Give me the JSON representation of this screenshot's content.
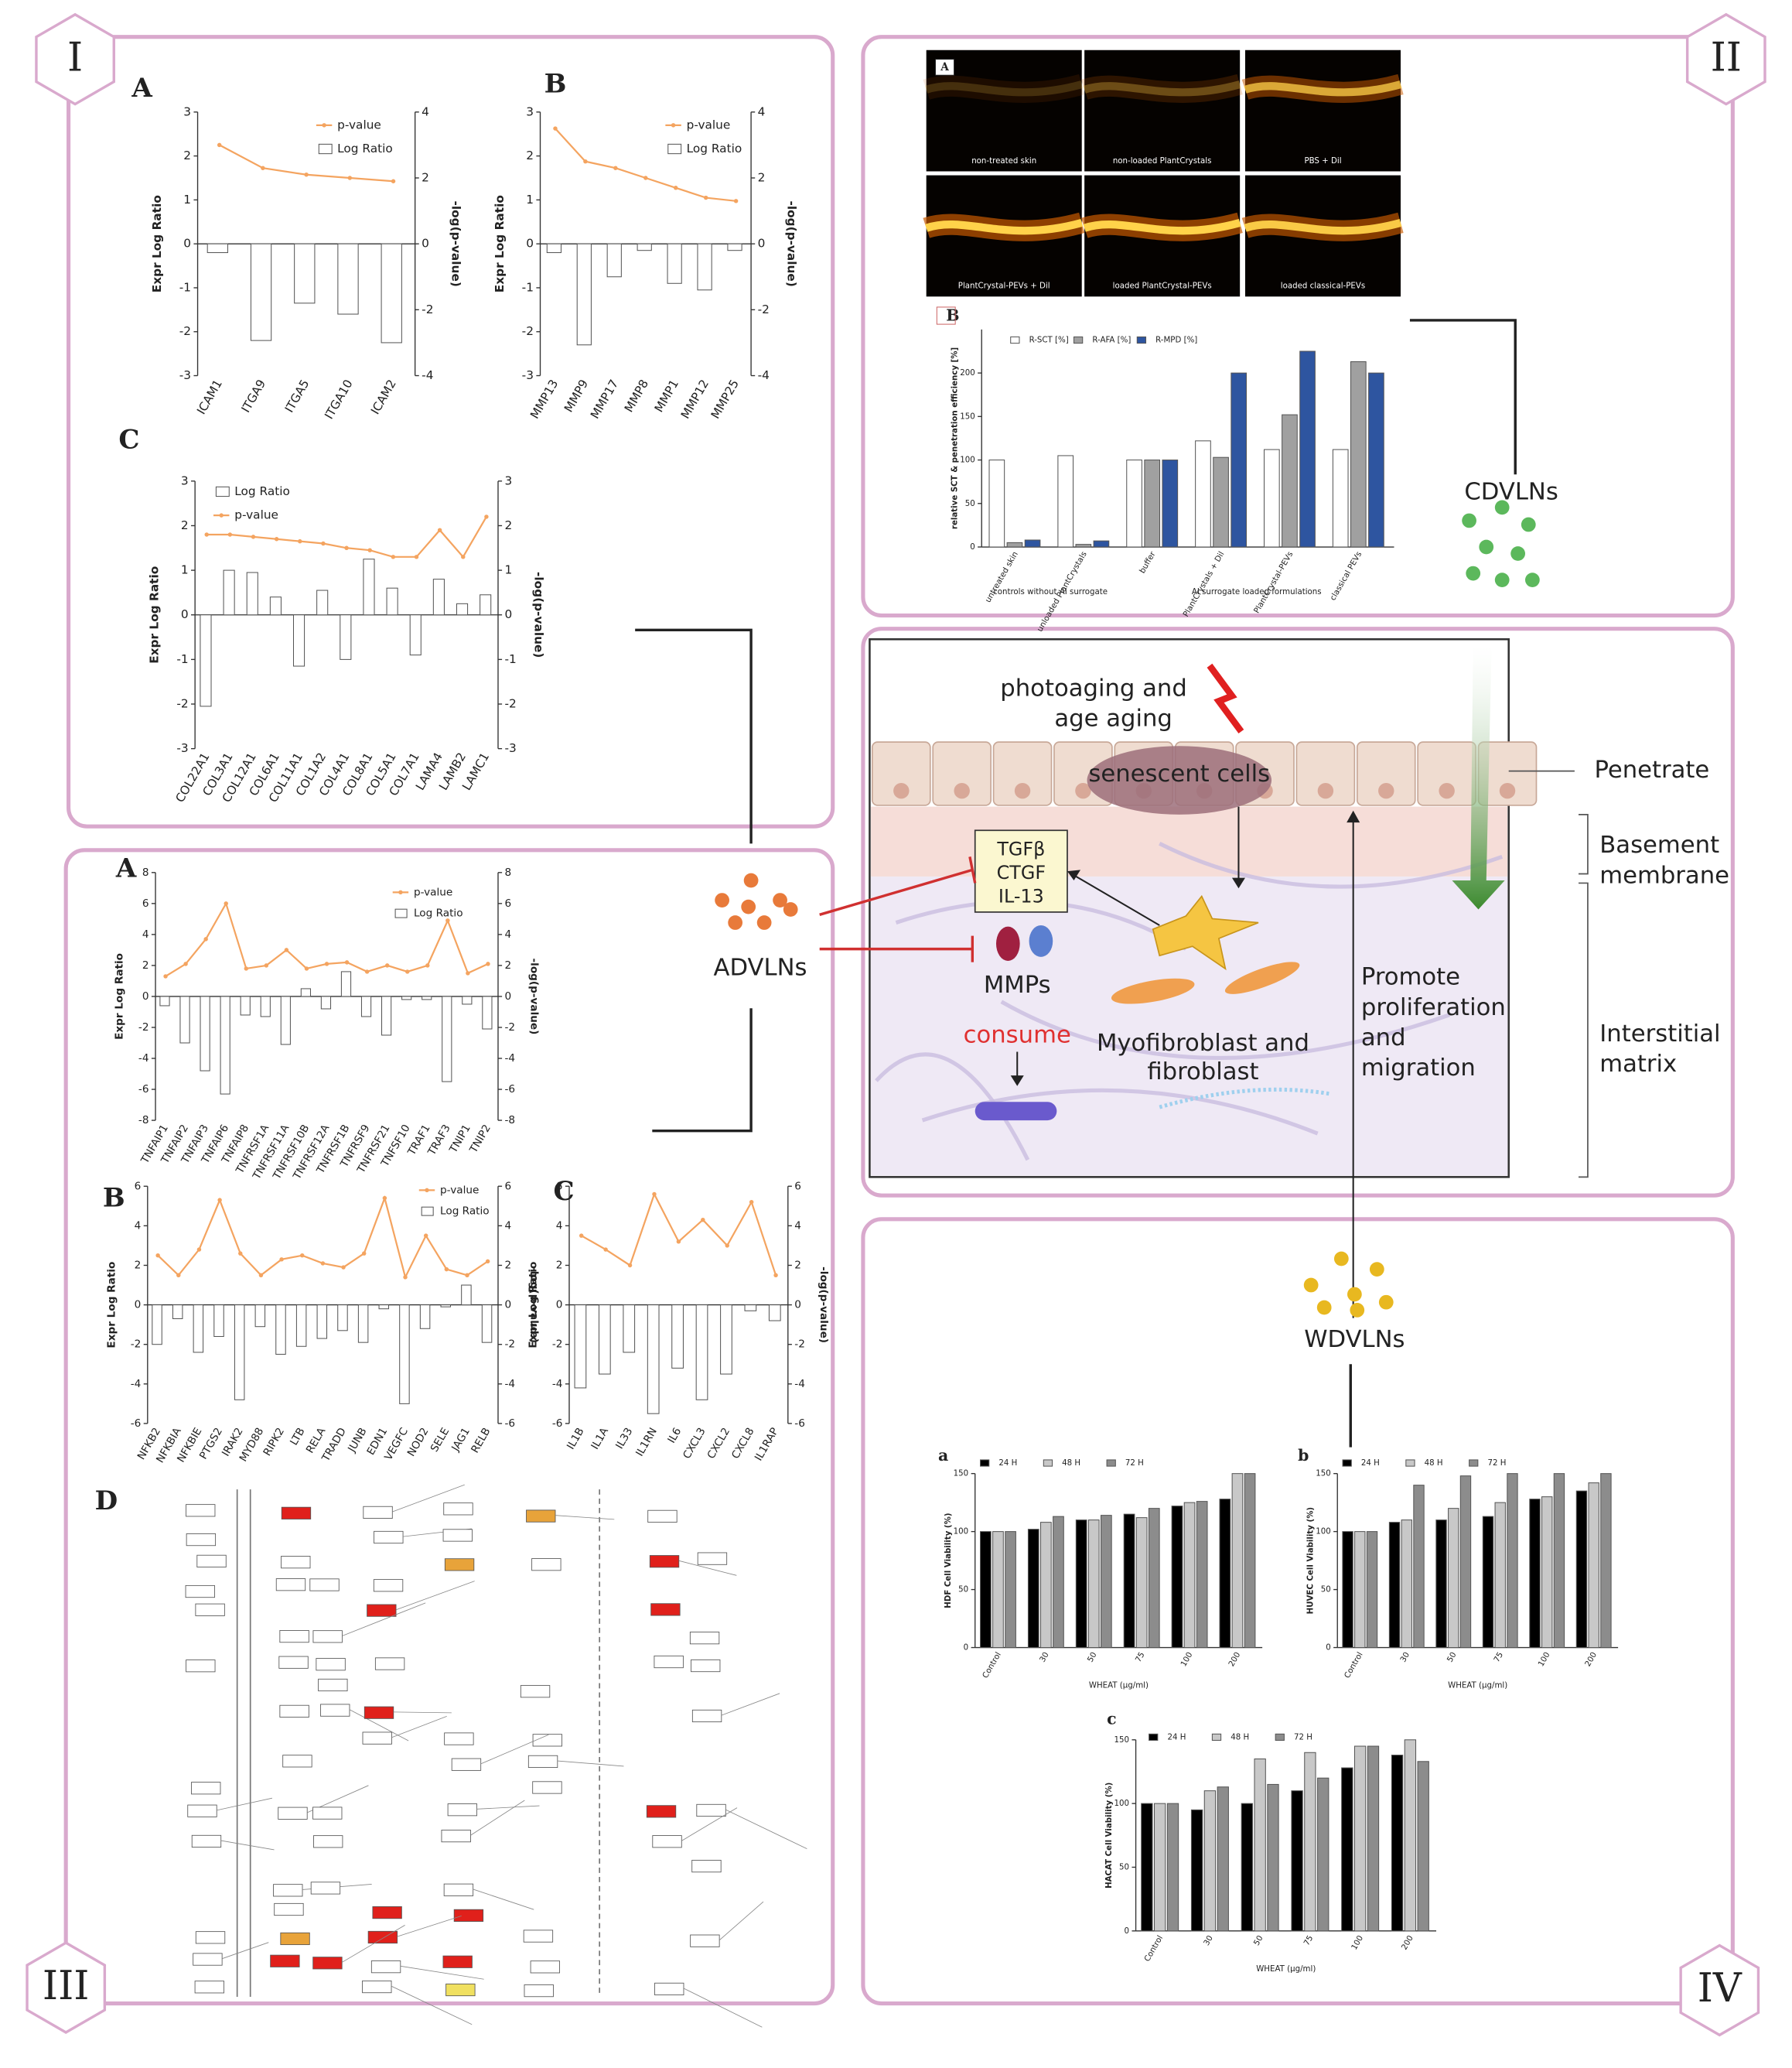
{
  "panel_labels": [
    "I",
    "II",
    "III",
    "IV"
  ],
  "microscopy": {
    "label": "A",
    "captions": [
      "non-treated skin",
      "non-loaded PlantCrystals",
      "PBS + Dil",
      "PlantCrystal-PEVs + Dil",
      "loaded PlantCrystal-PEVs",
      "loaded classical-PEVs"
    ]
  },
  "diagram": {
    "photoaging": [
      "photoaging and",
      "age aging"
    ],
    "senescent": "senescent cells",
    "penetrate": "Penetrate",
    "basement": [
      "Basement",
      "membrane"
    ],
    "interstitial": [
      "Interstitial",
      "matrix"
    ],
    "factors": [
      "TGFβ",
      "CTGF",
      "IL-13"
    ],
    "mmps": "MMPs",
    "consume": "consume",
    "fibroblast": [
      "Myofibroblast and",
      "fibroblast"
    ],
    "promote": [
      "Promote",
      "proliferation",
      "and",
      "migration"
    ],
    "cdvlns": "CDVLNs",
    "advlns": "ADVLNs",
    "wdvlns": "WDVLNs"
  },
  "pathway_label": "D",
  "chart_data": [
    {
      "type": "combo",
      "label": "A",
      "ylabel": "Expr Log Ratio",
      "y2label": "-log(p-value)",
      "categories": [
        "ICAM1",
        "ITGA9",
        "ITGA5",
        "ITGA10",
        "ICAM2"
      ],
      "ylim": [
        -3,
        3
      ],
      "yticks": [
        -3,
        -2,
        -1,
        0,
        1,
        2,
        3
      ],
      "y2lim": [
        -4,
        4
      ],
      "y2ticks": [
        -4,
        -2,
        0,
        2,
        4
      ],
      "series": [
        {
          "name": "p-value",
          "color": "#f4a460",
          "axis": "y2",
          "values": [
            3.0,
            2.3,
            2.1,
            2.0,
            1.9
          ]
        },
        {
          "name": "Log Ratio",
          "color": "#ffffff",
          "values": [
            -0.2,
            -2.2,
            -1.35,
            -1.6,
            -2.25
          ]
        }
      ]
    },
    {
      "type": "combo",
      "label": "B",
      "ylabel": "Expr Log Ratio",
      "y2label": "-log(p-value)",
      "categories": [
        "MMP13",
        "MMP9",
        "MMP17",
        "MMP8",
        "MMP1",
        "MMP12",
        "MMP25"
      ],
      "ylim": [
        -3,
        3
      ],
      "yticks": [
        -3,
        -2,
        -1,
        0,
        1,
        2,
        3
      ],
      "y2lim": [
        -4,
        4
      ],
      "y2ticks": [
        -4,
        -2,
        0,
        2,
        4
      ],
      "series": [
        {
          "name": "p-value",
          "color": "#f4a460",
          "axis": "y2",
          "values": [
            3.5,
            2.5,
            2.3,
            2.0,
            1.7,
            1.4,
            1.3
          ]
        },
        {
          "name": "Log Ratio",
          "color": "#ffffff",
          "values": [
            -0.2,
            -2.3,
            -0.75,
            -0.15,
            -0.9,
            -1.05,
            -0.15
          ]
        }
      ]
    },
    {
      "type": "combo",
      "label": "C",
      "ylabel": "Expr Log Ratio",
      "y2label": "-log(p-value)",
      "categories": [
        "COL22A1",
        "COL3A1",
        "COL12A1",
        "COL6A1",
        "COL11A1",
        "COL1A2",
        "COL4A1",
        "COL8A1",
        "COL5A1",
        "COL7A1",
        "LAMA4",
        "LAMB2",
        "LAMC1"
      ],
      "ylim": [
        -3,
        3
      ],
      "yticks": [
        -3,
        -2,
        -1,
        0,
        1,
        2,
        3
      ],
      "y2lim": [
        -3,
        3
      ],
      "y2ticks": [
        -3,
        -2,
        -1,
        0,
        1,
        2,
        3
      ],
      "series": [
        {
          "name": "Log Ratio",
          "color": "#ffffff",
          "values": [
            -2.05,
            1.0,
            0.95,
            0.4,
            -1.15,
            0.55,
            -1.0,
            1.25,
            0.6,
            -0.9,
            0.8,
            0.25,
            0.45
          ]
        },
        {
          "name": "p-value",
          "color": "#f4a460",
          "axis": "y2",
          "values": [
            1.8,
            1.8,
            1.75,
            1.7,
            1.65,
            1.6,
            1.5,
            1.45,
            1.3,
            1.3,
            1.9,
            1.3,
            2.2
          ]
        }
      ]
    },
    {
      "type": "combo",
      "label": "A",
      "ylabel": "Expr Log Ratio",
      "y2label": "-log(p-value)",
      "categories": [
        "TNFAIP1",
        "TNFAIP2",
        "TNFAIP3",
        "TNFAIP6",
        "TNFAIP8",
        "TNFRSF1A",
        "TNFRSF11A",
        "TNFRSF10B",
        "TNFRSF12A",
        "TNFRSF1B",
        "TNFRSF9",
        "TNFRSF21",
        "TNFSF10",
        "TRAF1",
        "TRAF3",
        "TNIP1",
        "TNIP2"
      ],
      "ylim": [
        -8,
        8
      ],
      "yticks": [
        -8,
        -6,
        -4,
        -2,
        0,
        2,
        4,
        6,
        8
      ],
      "y2lim": [
        -8,
        8
      ],
      "y2ticks": [
        -8,
        -6,
        -4,
        -2,
        0,
        2,
        4,
        6,
        8
      ],
      "series": [
        {
          "name": "p-value",
          "color": "#f4a460",
          "axis": "y2",
          "values": [
            1.3,
            2.1,
            3.7,
            6.0,
            1.8,
            2.0,
            3.0,
            1.8,
            2.1,
            2.2,
            1.6,
            2.0,
            1.6,
            2.0,
            4.9,
            1.5,
            2.1
          ]
        },
        {
          "name": "Log Ratio",
          "color": "#ffffff",
          "values": [
            -0.6,
            -3.0,
            -4.8,
            -6.3,
            -1.2,
            -1.3,
            -3.1,
            0.5,
            -0.8,
            1.6,
            -1.3,
            -2.5,
            -0.2,
            -0.2,
            -5.5,
            -0.5,
            -2.1
          ]
        }
      ]
    },
    {
      "type": "combo",
      "label": "B",
      "ylabel": "Expr Log Ratio",
      "y2label": "-log(p-value)",
      "categories": [
        "NFKB2",
        "NFKBIA",
        "NFKBIE",
        "PTGS2",
        "IRAK2",
        "MYD88",
        "RIPK2",
        "LTB",
        "RELA",
        "TRADD",
        "JUNB",
        "EDN1",
        "VEGFC",
        "NOD2",
        "SELE",
        "JAG1",
        "RELB"
      ],
      "ylim": [
        -6,
        6
      ],
      "yticks": [
        -6,
        -4,
        -2,
        0,
        2,
        4,
        6
      ],
      "y2lim": [
        -6,
        6
      ],
      "y2ticks": [
        -6,
        -4,
        -2,
        0,
        2,
        4,
        6
      ],
      "series": [
        {
          "name": "p-value",
          "color": "#f4a460",
          "axis": "y2",
          "values": [
            2.5,
            1.5,
            2.8,
            5.3,
            2.6,
            1.5,
            2.3,
            2.5,
            2.1,
            1.9,
            2.6,
            5.4,
            1.4,
            3.5,
            1.8,
            1.5,
            2.2
          ]
        },
        {
          "name": "Log Ratio",
          "color": "#ffffff",
          "values": [
            -2.0,
            -0.7,
            -2.4,
            -1.6,
            -4.8,
            -1.1,
            -2.5,
            -2.1,
            -1.7,
            -1.3,
            -1.9,
            -0.2,
            -5.0,
            -1.2,
            -0.1,
            1.0,
            -1.9
          ]
        }
      ]
    },
    {
      "type": "combo",
      "label": "C",
      "ylabel": "Expr Log Ratio",
      "y2label": "-log(p-value)",
      "legend": false,
      "categories": [
        "IL1B",
        "IL1A",
        "IL33",
        "IL1RN",
        "IL6",
        "CXCL3",
        "CXCL2",
        "CXCL8",
        "IL1RAP"
      ],
      "ylim": [
        -6,
        6
      ],
      "yticks": [
        -6,
        -4,
        -2,
        0,
        2,
        4,
        6
      ],
      "y2lim": [
        -6,
        6
      ],
      "y2ticks": [
        -6,
        -4,
        -2,
        0,
        2,
        4,
        6
      ],
      "series": [
        {
          "name": "p-value",
          "color": "#f4a460",
          "axis": "y2",
          "values": [
            3.5,
            2.8,
            2.0,
            5.6,
            3.2,
            4.3,
            3.0,
            5.2,
            1.5
          ]
        },
        {
          "name": "Log Ratio",
          "color": "#ffffff",
          "values": [
            -4.2,
            -3.5,
            -2.4,
            -5.5,
            -3.2,
            -4.8,
            -3.5,
            -0.3,
            -0.8
          ]
        }
      ]
    },
    {
      "type": "bar",
      "label": "B",
      "ylabel": "relative SCT & penetration efficiency [%]",
      "categories": [
        "untreated skin",
        "unloaded PlantCrystals",
        "buffer",
        "PlantCrystals + Dil",
        "PlantCrystal-PEVs",
        "classical PEVs"
      ],
      "xgroups": [
        "controls without AI surrogate",
        "AI surrogate loaded formulations"
      ],
      "ylim": [
        0,
        250
      ],
      "yticks": [
        0,
        50,
        100,
        150,
        200
      ],
      "series": [
        {
          "name": "R-SCT [%]",
          "color": "#ffffff",
          "values": [
            100,
            105,
            100,
            122,
            112,
            112
          ]
        },
        {
          "name": "R-AFA [%]",
          "color": "#a0a0a0",
          "values": [
            5,
            3,
            100,
            103,
            152,
            213
          ]
        },
        {
          "name": "R-MPD [%]",
          "color": "#2e55a0",
          "values": [
            8,
            7,
            100,
            200,
            225,
            200
          ]
        }
      ]
    },
    {
      "type": "bar",
      "label": "a",
      "ylabel": "HDF Cell Viability (%)",
      "xlabel": "WHEAT (μg/ml)",
      "categories": [
        "Control",
        "30",
        "50",
        "75",
        "100",
        "200"
      ],
      "ylim": [
        0,
        150
      ],
      "yticks": [
        0,
        50,
        100,
        150
      ],
      "series": [
        {
          "name": "24 H",
          "color": "#000000",
          "values": [
            100,
            102,
            110,
            115,
            122,
            128
          ]
        },
        {
          "name": "48 H",
          "color": "#c8c8c8",
          "values": [
            100,
            108,
            110,
            112,
            125,
            150
          ]
        },
        {
          "name": "72 H",
          "color": "#8c8c8c",
          "values": [
            100,
            113,
            114,
            120,
            126,
            150
          ]
        }
      ]
    },
    {
      "type": "bar",
      "label": "b",
      "ylabel": "HUVEC Cell Viability (%)",
      "xlabel": "WHEAT (μg/ml)",
      "categories": [
        "Control",
        "30",
        "50",
        "75",
        "100",
        "200"
      ],
      "ylim": [
        0,
        150
      ],
      "yticks": [
        0,
        50,
        100,
        150
      ],
      "series": [
        {
          "name": "24 H",
          "color": "#000000",
          "values": [
            100,
            108,
            110,
            113,
            128,
            135
          ]
        },
        {
          "name": "48 H",
          "color": "#c8c8c8",
          "values": [
            100,
            110,
            120,
            125,
            130,
            142
          ]
        },
        {
          "name": "72 H",
          "color": "#8c8c8c",
          "values": [
            100,
            140,
            148,
            150,
            150,
            150
          ]
        }
      ]
    },
    {
      "type": "bar",
      "label": "c",
      "ylabel": "HACAT Cell Viability (%)",
      "xlabel": "WHEAT (μg/ml)",
      "categories": [
        "Control",
        "30",
        "50",
        "75",
        "100",
        "200"
      ],
      "ylim": [
        0,
        150
      ],
      "yticks": [
        0,
        50,
        100,
        150
      ],
      "series": [
        {
          "name": "24 H",
          "color": "#000000",
          "values": [
            100,
            95,
            100,
            110,
            128,
            138
          ]
        },
        {
          "name": "48 H",
          "color": "#c8c8c8",
          "values": [
            100,
            110,
            135,
            140,
            145,
            150
          ]
        },
        {
          "name": "72 H",
          "color": "#8c8c8c",
          "values": [
            100,
            113,
            115,
            120,
            145,
            133
          ]
        }
      ]
    }
  ]
}
